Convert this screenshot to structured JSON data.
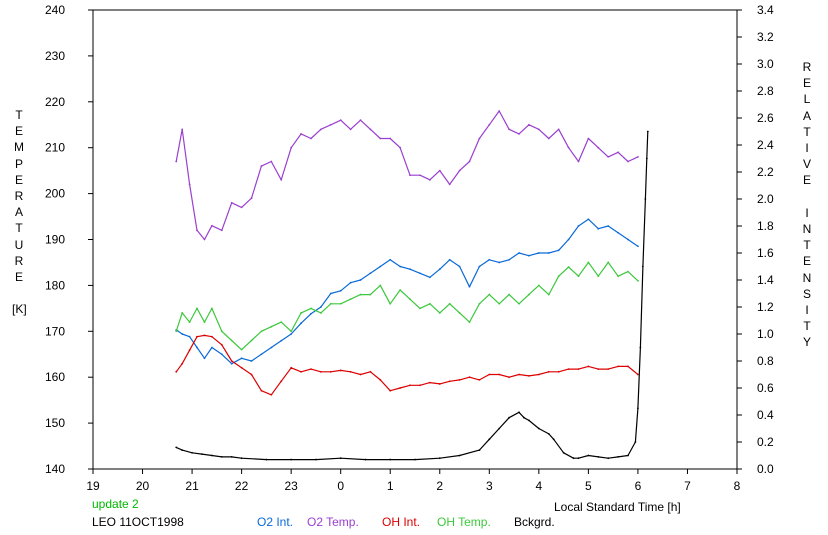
{
  "chart_data": {
    "type": "line",
    "title": "",
    "xlabel": "Local Standard Time [h]",
    "ylabel_left": [
      "T",
      "E",
      "M",
      "P",
      "E",
      "R",
      "A",
      "T",
      "U",
      "R",
      "E",
      "",
      "[K]"
    ],
    "ylabel_right": [
      "R",
      "E",
      "L",
      "A",
      "T",
      "I",
      "V",
      "E",
      "",
      "I",
      "N",
      "T",
      "E",
      "N",
      "S",
      "I",
      "T",
      "Y"
    ],
    "x_ticks": [
      19,
      20,
      21,
      22,
      23,
      0,
      1,
      2,
      3,
      4,
      5,
      6,
      7,
      8
    ],
    "x_range": [
      19,
      32
    ],
    "yleft_ticks": [
      140,
      150,
      160,
      170,
      180,
      190,
      200,
      210,
      220,
      230,
      240
    ],
    "yleft_range": [
      140,
      240
    ],
    "yright_ticks": [
      "0.0",
      "0.2",
      "0.4",
      "0.6",
      "0.8",
      "1.0",
      "1.2",
      "1.4",
      "1.6",
      "1.8",
      "2.0",
      "2.2",
      "2.4",
      "2.6",
      "2.8",
      "3.0",
      "3.2",
      "3.4"
    ],
    "yright_range": [
      0,
      3.4
    ],
    "grid": false,
    "annotation": {
      "text": "update 2",
      "color": "#00b800"
    },
    "site_label": "LEO 11OCT1998",
    "series": [
      {
        "name": "O2 Int.",
        "color": "#0a6ad8",
        "axis": "right",
        "x": [
          20.68,
          20.8,
          20.95,
          21.1,
          21.25,
          21.4,
          21.6,
          21.8,
          22.0,
          22.2,
          22.4,
          22.6,
          22.8,
          23.0,
          23.2,
          23.4,
          23.6,
          23.8,
          24.0,
          24.2,
          24.4,
          24.6,
          24.8,
          25.0,
          25.2,
          25.4,
          25.6,
          25.8,
          26.0,
          26.2,
          26.4,
          26.6,
          26.8,
          27.0,
          27.2,
          27.4,
          27.6,
          27.8,
          28.0,
          28.2,
          28.4,
          28.6,
          28.8,
          29.0,
          29.2,
          29.4,
          29.6,
          29.8,
          30.0
        ],
        "y": [
          1.03,
          1.0,
          0.98,
          0.9,
          0.82,
          0.9,
          0.85,
          0.78,
          0.82,
          0.8,
          0.85,
          0.9,
          0.95,
          1.0,
          1.08,
          1.15,
          1.2,
          1.3,
          1.32,
          1.38,
          1.4,
          1.45,
          1.5,
          1.55,
          1.5,
          1.48,
          1.45,
          1.42,
          1.48,
          1.55,
          1.5,
          1.35,
          1.5,
          1.55,
          1.53,
          1.55,
          1.6,
          1.58,
          1.6,
          1.6,
          1.62,
          1.7,
          1.8,
          1.85,
          1.78,
          1.8,
          1.75,
          1.7,
          1.65
        ]
      },
      {
        "name": "O2 Temp.",
        "color": "#9a3fd0",
        "axis": "left",
        "x": [
          20.68,
          20.8,
          20.95,
          21.1,
          21.25,
          21.4,
          21.6,
          21.8,
          22.0,
          22.2,
          22.4,
          22.6,
          22.8,
          23.0,
          23.2,
          23.4,
          23.6,
          23.8,
          24.0,
          24.2,
          24.4,
          24.6,
          24.8,
          25.0,
          25.2,
          25.4,
          25.6,
          25.8,
          26.0,
          26.2,
          26.4,
          26.6,
          26.8,
          27.0,
          27.2,
          27.4,
          27.6,
          27.8,
          28.0,
          28.2,
          28.4,
          28.6,
          28.8,
          29.0,
          29.2,
          29.4,
          29.6,
          29.8,
          30.0
        ],
        "y": [
          207,
          214,
          202,
          192,
          190,
          193,
          192,
          198,
          197,
          199,
          206,
          207,
          203,
          210,
          213,
          212,
          214,
          215,
          216,
          214,
          216,
          214,
          212,
          212,
          210,
          204,
          204,
          203,
          205,
          202,
          205,
          207,
          212,
          215,
          218,
          214,
          213,
          215,
          214,
          212,
          214,
          210,
          207,
          212,
          210,
          208,
          209,
          207,
          208
        ]
      },
      {
        "name": "OH Int.",
        "color": "#dc0000",
        "axis": "right",
        "x": [
          20.68,
          20.8,
          20.95,
          21.1,
          21.25,
          21.4,
          21.6,
          21.8,
          22.0,
          22.2,
          22.4,
          22.6,
          22.8,
          23.0,
          23.2,
          23.4,
          23.6,
          23.8,
          24.0,
          24.2,
          24.4,
          24.6,
          24.8,
          25.0,
          25.2,
          25.4,
          25.6,
          25.8,
          26.0,
          26.2,
          26.4,
          26.6,
          26.8,
          27.0,
          27.2,
          27.4,
          27.6,
          27.8,
          28.0,
          28.2,
          28.4,
          28.6,
          28.8,
          29.0,
          29.2,
          29.4,
          29.6,
          29.8,
          30.0
        ],
        "y": [
          0.72,
          0.78,
          0.88,
          0.98,
          0.99,
          0.98,
          0.92,
          0.8,
          0.75,
          0.7,
          0.58,
          0.55,
          0.65,
          0.75,
          0.72,
          0.74,
          0.72,
          0.72,
          0.73,
          0.72,
          0.7,
          0.72,
          0.66,
          0.58,
          0.6,
          0.62,
          0.62,
          0.64,
          0.63,
          0.65,
          0.66,
          0.68,
          0.66,
          0.7,
          0.7,
          0.68,
          0.7,
          0.69,
          0.7,
          0.72,
          0.72,
          0.74,
          0.74,
          0.76,
          0.74,
          0.74,
          0.76,
          0.76,
          0.7
        ]
      },
      {
        "name": "OH Temp.",
        "color": "#3cc83c",
        "axis": "left",
        "x": [
          20.68,
          20.8,
          20.95,
          21.1,
          21.25,
          21.4,
          21.6,
          21.8,
          22.0,
          22.2,
          22.4,
          22.6,
          22.8,
          23.0,
          23.2,
          23.4,
          23.6,
          23.8,
          24.0,
          24.2,
          24.4,
          24.6,
          24.8,
          25.0,
          25.2,
          25.4,
          25.6,
          25.8,
          26.0,
          26.2,
          26.4,
          26.6,
          26.8,
          27.0,
          27.2,
          27.4,
          27.6,
          27.8,
          28.0,
          28.2,
          28.4,
          28.6,
          28.8,
          29.0,
          29.2,
          29.4,
          29.6,
          29.8,
          30.0
        ],
        "y": [
          170,
          174,
          172,
          175,
          172,
          175,
          170,
          168,
          166,
          168,
          170,
          171,
          172,
          170,
          174,
          175,
          174,
          176,
          176,
          177,
          178,
          178,
          180,
          176,
          179,
          177,
          175,
          176,
          174,
          176,
          174,
          172,
          176,
          178,
          176,
          178,
          176,
          178,
          180,
          178,
          182,
          184,
          182,
          185,
          182,
          185,
          182,
          183,
          181
        ]
      },
      {
        "name": "Bckgrd.",
        "color": "#000000",
        "axis": "right",
        "x": [
          20.68,
          20.8,
          21.0,
          21.2,
          21.4,
          21.6,
          21.8,
          22.0,
          22.5,
          23.0,
          23.5,
          24.0,
          24.5,
          25.0,
          25.5,
          26.0,
          26.4,
          26.8,
          27.0,
          27.2,
          27.4,
          27.6,
          27.7,
          27.8,
          28.0,
          28.2,
          28.3,
          28.5,
          28.7,
          28.8,
          29.0,
          29.2,
          29.4,
          29.6,
          29.8,
          29.95,
          30.0,
          30.05,
          30.1,
          30.15,
          30.18,
          30.2
        ],
        "y": [
          0.16,
          0.14,
          0.12,
          0.11,
          0.1,
          0.09,
          0.09,
          0.08,
          0.07,
          0.07,
          0.07,
          0.08,
          0.07,
          0.07,
          0.07,
          0.08,
          0.1,
          0.14,
          0.22,
          0.3,
          0.38,
          0.42,
          0.38,
          0.36,
          0.3,
          0.26,
          0.22,
          0.12,
          0.08,
          0.08,
          0.1,
          0.09,
          0.08,
          0.09,
          0.1,
          0.2,
          0.45,
          0.9,
          1.5,
          2.0,
          2.3,
          2.5
        ]
      }
    ]
  }
}
